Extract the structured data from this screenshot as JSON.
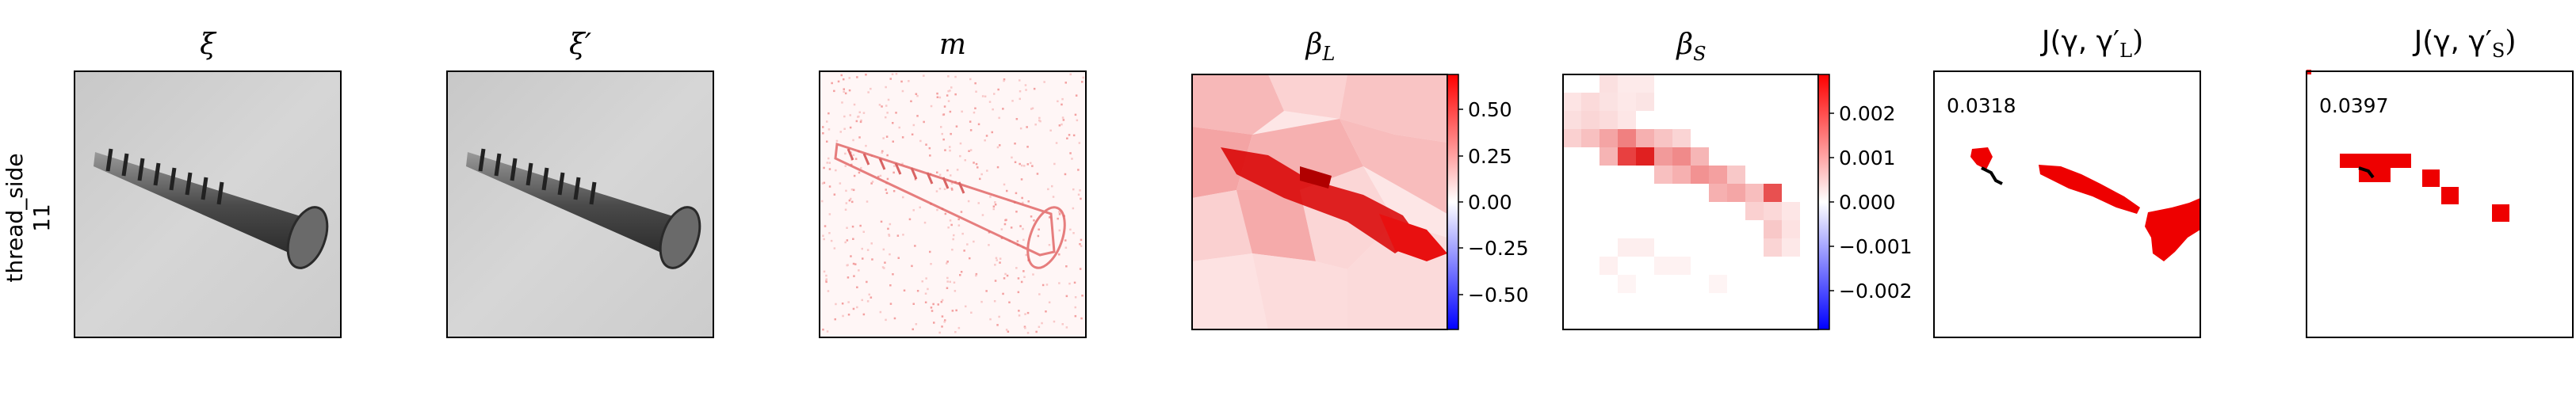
{
  "row_label": {
    "line1": "thread_side",
    "line2": "11"
  },
  "panels": [
    {
      "id": "xi",
      "title": "ξ"
    },
    {
      "id": "xi_prime",
      "title": "ξ′"
    },
    {
      "id": "m",
      "title": "m"
    },
    {
      "id": "beta_L",
      "title": "β",
      "title_sub": "L"
    },
    {
      "id": "beta_S",
      "title": "β",
      "title_sub": "S"
    },
    {
      "id": "J_L",
      "title": "J(γ, γ′",
      "title_sub": "L",
      "title_end": ")",
      "score": "0.0318"
    },
    {
      "id": "J_S",
      "title": "J(γ, γ′",
      "title_sub": "S",
      "title_end": ")",
      "score": "0.0397"
    }
  ],
  "colorbar_L": {
    "ticks": [
      "0.50",
      "0.25",
      "0.00",
      "−0.25",
      "−0.50"
    ]
  },
  "colorbar_S": {
    "ticks": [
      "0.002",
      "0.001",
      "0.000",
      "−0.001",
      "−0.002"
    ]
  },
  "colors": {
    "positive": "#e00000",
    "negative": "#0000e0",
    "gray_bg": "#d0d0d0"
  }
}
